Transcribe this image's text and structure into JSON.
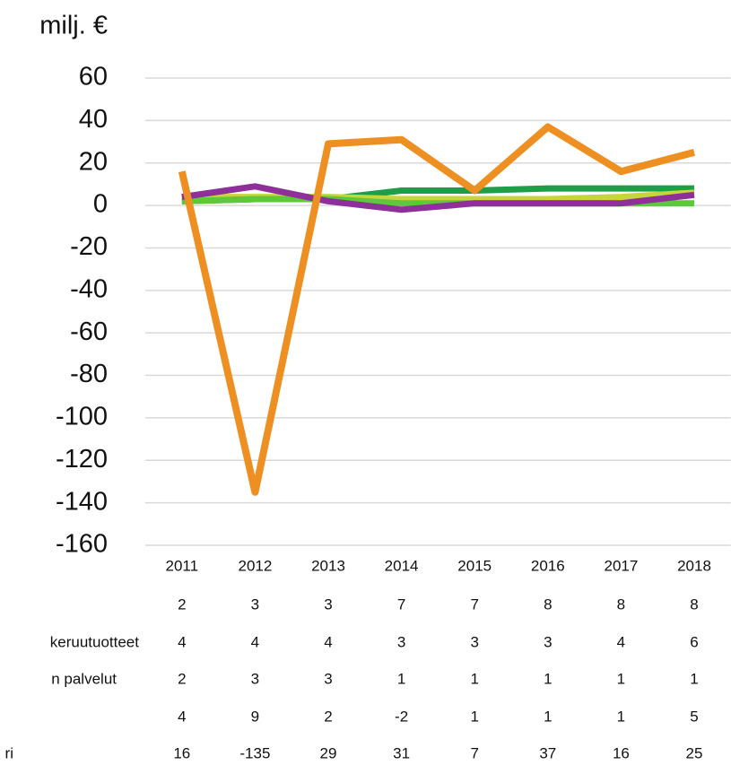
{
  "chart_data": {
    "type": "line",
    "unit_label": "milj. €",
    "categories": [
      "2011",
      "2012",
      "2013",
      "2014",
      "2015",
      "2016",
      "2017",
      "2018"
    ],
    "series": [
      {
        "color": "#1e9e48",
        "values": [
          2,
          3,
          3,
          7,
          7,
          8,
          8,
          8
        ]
      },
      {
        "name": "keruutuotteet",
        "color": "#c6d63a",
        "values": [
          4,
          4,
          4,
          3,
          3,
          3,
          4,
          6
        ]
      },
      {
        "name": "n palvelut",
        "color": "#5cc83a",
        "values": [
          2,
          3,
          3,
          1,
          1,
          1,
          1,
          1
        ]
      },
      {
        "color": "#8e2f9a",
        "values": [
          4,
          9,
          2,
          -2,
          1,
          1,
          1,
          5
        ]
      },
      {
        "name": "ri",
        "color": "#ee8f22",
        "values": [
          16,
          -135,
          29,
          31,
          7,
          37,
          16,
          25
        ]
      }
    ],
    "ylim": [
      -160,
      60
    ],
    "yticks": [
      -160,
      -140,
      -120,
      -100,
      -80,
      -60,
      -40,
      -20,
      0,
      20,
      40,
      60
    ],
    "grid": true
  }
}
